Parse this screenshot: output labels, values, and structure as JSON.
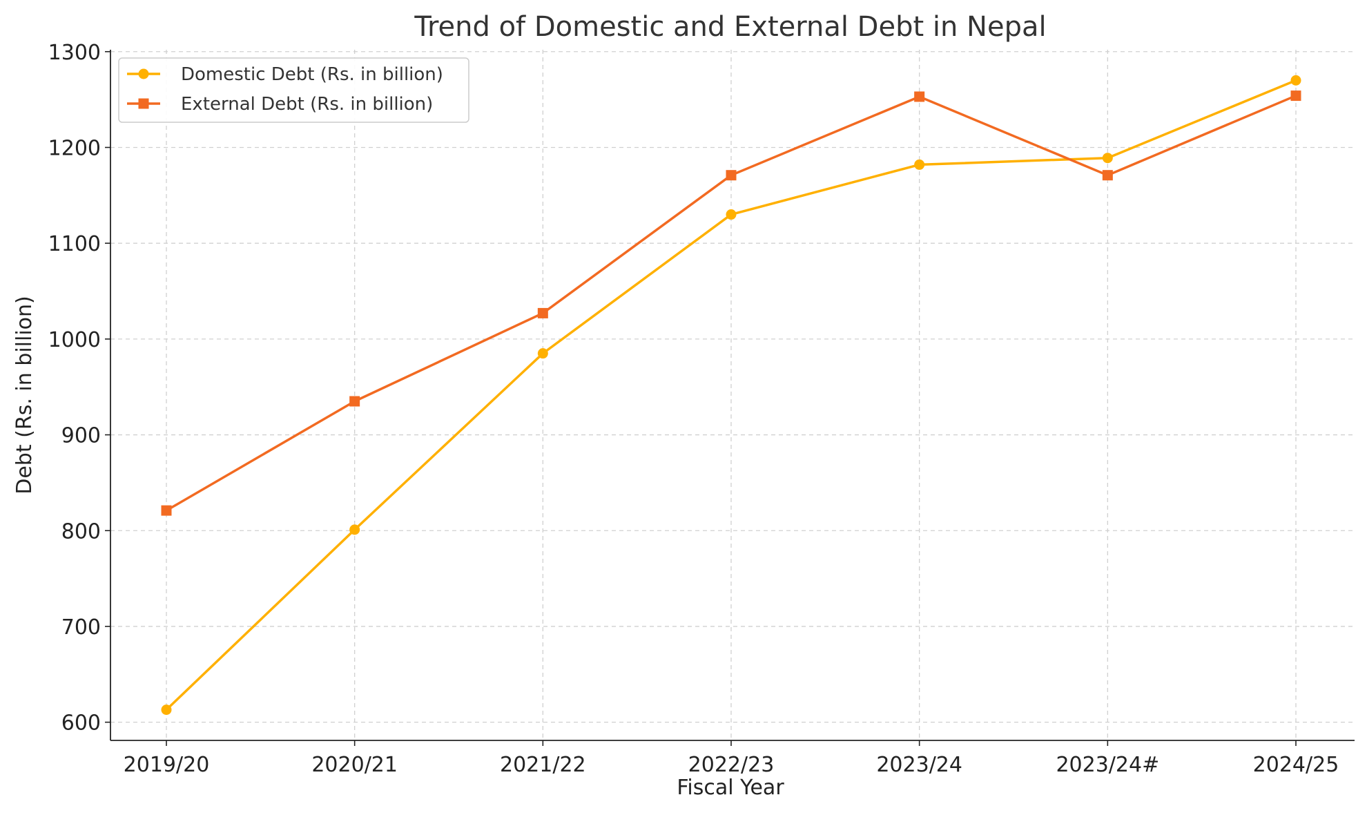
{
  "chart_data": {
    "type": "line",
    "title": "Trend of Domestic and External Debt in Nepal",
    "xlabel": "Fiscal Year",
    "ylabel": "Debt (Rs. in billion)",
    "categories": [
      "2019/20",
      "2020/21",
      "2021/22",
      "2022/23",
      "2023/24",
      "2023/24#",
      "2024/25"
    ],
    "yticks": [
      600,
      700,
      800,
      900,
      1000,
      1100,
      1200,
      1300
    ],
    "ylim": [
      581,
      1302
    ],
    "grid": true,
    "legend_position": "top-left",
    "series": [
      {
        "name": "Domestic Debt (Rs. in billion)",
        "marker": "circle",
        "color": "#FFB000",
        "values": [
          613,
          801,
          985,
          1130,
          1182,
          1189,
          1270
        ]
      },
      {
        "name": "External Debt (Rs. in billion)",
        "marker": "square",
        "color": "#F26A21",
        "values": [
          821,
          935,
          1027,
          1171,
          1253,
          1171,
          1254
        ]
      }
    ]
  }
}
